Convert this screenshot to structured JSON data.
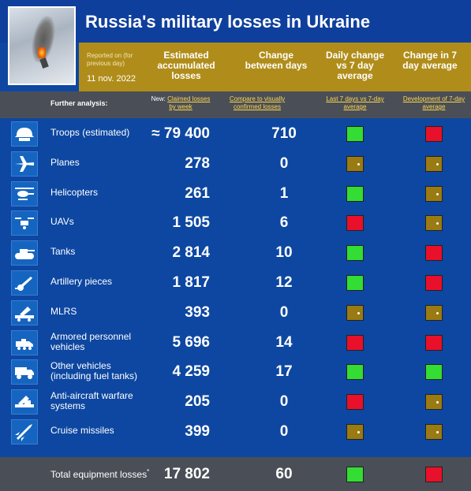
{
  "title": "Russia's military losses in Ukraine",
  "reported_note": "Reported on (for previous day)",
  "date": "11 nov. 2022",
  "columns": {
    "estimated": "Estimated accumulated losses",
    "change": "Change between days",
    "daily": "Daily change vs 7 day average",
    "change7": "Change in 7 day average"
  },
  "further": "Further analysis:",
  "links": {
    "weekly_prefix": "New:",
    "weekly": "Claimed losses by week",
    "compare": "Compare to visually confirmed losses",
    "last7": "Last 7 days vs 7-day average",
    "development": "Development of 7-day average"
  },
  "colors": {
    "green": "#33dd33",
    "red": "#e8102a",
    "neutral": "#9a7a12"
  },
  "rows": [
    {
      "icon": "helmet-icon",
      "label": "Troops (estimated)",
      "prefix": "≈",
      "value": "79 400",
      "change": "710",
      "daily": "green",
      "avg": "red"
    },
    {
      "icon": "plane-icon",
      "label": "Planes",
      "prefix": "",
      "value": "278",
      "change": "0",
      "daily": "neutral",
      "avg": "neutral"
    },
    {
      "icon": "helicopter-icon",
      "label": "Helicopters",
      "prefix": "",
      "value": "261",
      "change": "1",
      "daily": "green",
      "avg": "neutral"
    },
    {
      "icon": "drone-icon",
      "label": "UAVs",
      "prefix": "",
      "value": "1 505",
      "change": "6",
      "daily": "red",
      "avg": "neutral"
    },
    {
      "icon": "tank-icon",
      "label": "Tanks",
      "prefix": "",
      "value": "2 814",
      "change": "10",
      "daily": "green",
      "avg": "red"
    },
    {
      "icon": "artillery-icon",
      "label": "Artillery pieces",
      "prefix": "",
      "value": "1 817",
      "change": "12",
      "daily": "green",
      "avg": "red"
    },
    {
      "icon": "mlrs-icon",
      "label": "MLRS",
      "prefix": "",
      "value": "393",
      "change": "0",
      "daily": "neutral",
      "avg": "neutral"
    },
    {
      "icon": "apc-icon",
      "label": "Armored personnel vehicles",
      "prefix": "",
      "value": "5 696",
      "change": "14",
      "daily": "red",
      "avg": "red"
    },
    {
      "icon": "truck-icon",
      "label": "Other vehicles (including fuel tanks)",
      "prefix": "",
      "value": "4 259",
      "change": "17",
      "daily": "green",
      "avg": "green"
    },
    {
      "icon": "anti-aircraft-icon",
      "label": "Anti-aircraft warfare systems",
      "prefix": "",
      "value": "205",
      "change": "0",
      "daily": "red",
      "avg": "neutral"
    },
    {
      "icon": "missile-icon",
      "label": "Cruise missiles",
      "prefix": "",
      "value": "399",
      "change": "0",
      "daily": "neutral",
      "avg": "neutral"
    }
  ],
  "total": {
    "label": "Total equipment losses",
    "marker": "*",
    "value": "17 802",
    "change": "60",
    "daily": "green",
    "avg": "red"
  }
}
